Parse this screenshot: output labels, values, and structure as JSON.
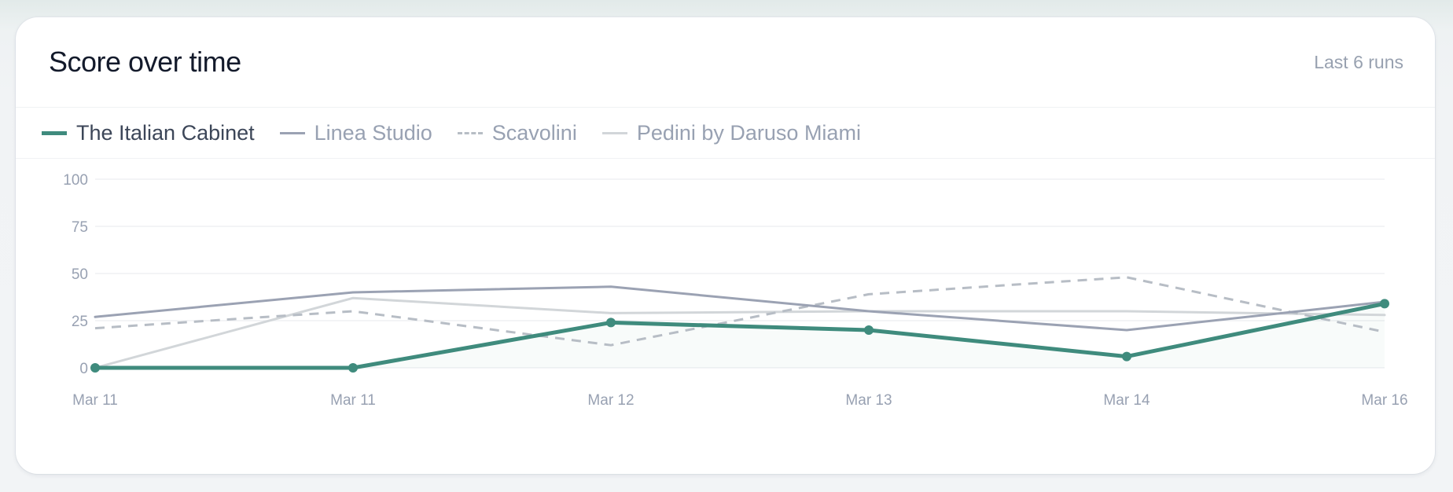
{
  "card": {
    "title": "Score over time",
    "subtitle": "Last 6 runs"
  },
  "legend": [
    {
      "label": "The Italian Cabinet",
      "color": "#3f8b7d",
      "style": "solid",
      "width": 5
    },
    {
      "label": "Linea Studio",
      "color": "#9ba2b3",
      "style": "solid",
      "width": 3
    },
    {
      "label": "Scavolini",
      "color": "#b7bdc5",
      "style": "dashed",
      "width": 3
    },
    {
      "label": "Pedini by Daruso Miami",
      "color": "#d2d6d9",
      "style": "solid",
      "width": 3
    }
  ],
  "colors": {
    "primary": "#3f8b7d",
    "grid": "#eff1f3",
    "axis_text": "#98a1b2"
  },
  "chart_data": {
    "type": "line",
    "title": "Score over time",
    "subtitle": "Last 6 runs",
    "xlabel": "",
    "ylabel": "",
    "categories": [
      "Mar 11",
      "Mar 11",
      "Mar 12",
      "Mar 13",
      "Mar 14",
      "Mar 16"
    ],
    "ylim": [
      0,
      100
    ],
    "yticks": [
      0,
      25,
      50,
      75,
      100
    ],
    "grid": true,
    "legend_position": "top-left",
    "series": [
      {
        "name": "The Italian Cabinet",
        "values": [
          0,
          0,
          24,
          20,
          6,
          34
        ],
        "markers": true,
        "area_fill": true
      },
      {
        "name": "Linea Studio",
        "values": [
          27,
          40,
          43,
          30,
          20,
          35
        ]
      },
      {
        "name": "Scavolini",
        "values": [
          21,
          30,
          12,
          39,
          48,
          19
        ]
      },
      {
        "name": "Pedini by Daruso Miami",
        "values": [
          0,
          37,
          29,
          30,
          30,
          28
        ]
      }
    ]
  }
}
